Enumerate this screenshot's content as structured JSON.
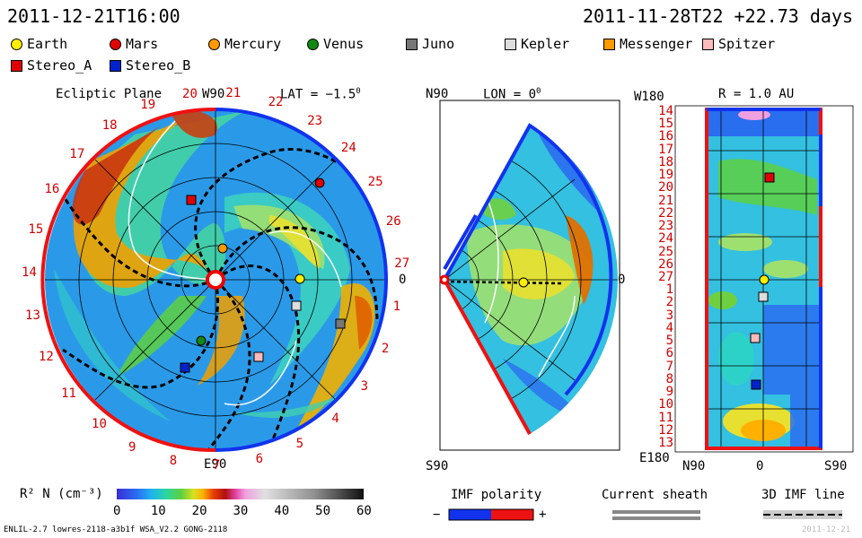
{
  "header": {
    "left_time": "2011-12-21T16:00",
    "right_time": "2011-11-28T22 +22.73 days"
  },
  "legend": [
    {
      "label": "Earth",
      "shape": "circle",
      "color": "#ffee00"
    },
    {
      "label": "Mars",
      "shape": "circle",
      "color": "#e00000"
    },
    {
      "label": "Mercury",
      "shape": "circle",
      "color": "#ff9900"
    },
    {
      "label": "Venus",
      "shape": "circle",
      "color": "#118811"
    },
    {
      "label": "Juno",
      "shape": "square",
      "color": "#777777"
    },
    {
      "label": "Kepler",
      "shape": "square",
      "color": "#dddddd"
    },
    {
      "label": "Messenger",
      "shape": "square",
      "color": "#ff9900"
    },
    {
      "label": "Spitzer",
      "shape": "square",
      "color": "#ffbbbb"
    },
    {
      "label": "Stereo_A",
      "shape": "square",
      "color": "#e00000"
    },
    {
      "label": "Stereo_B",
      "shape": "square",
      "color": "#0022cc"
    }
  ],
  "ecliptic": {
    "title": "Ecliptic Plane",
    "top_label": "W90",
    "bottom_label": "E90",
    "right_label": "0",
    "lat_label": "LAT = −1.5",
    "degree_sign": "0",
    "numbers": [
      "1",
      "2",
      "3",
      "4",
      "5",
      "6",
      "7",
      "8",
      "9",
      "10",
      "11",
      "12",
      "13",
      "14",
      "15",
      "16",
      "17",
      "18",
      "19",
      "20",
      "21",
      "22",
      "23",
      "24",
      "25",
      "26",
      "27"
    ]
  },
  "meridional": {
    "top_label": "N90",
    "bottom_label": "S90",
    "lon_label": "LON = 0",
    "degree_sign": "0",
    "right_label": "0"
  },
  "synoptic": {
    "top_left_label": "W180",
    "title": "R = 1.0 AU",
    "bottom_left": "E180",
    "bottom_n": "N90",
    "bottom_mid": "0",
    "bottom_s": "S90",
    "rows": [
      "14",
      "15",
      "16",
      "17",
      "18",
      "19",
      "20",
      "21",
      "22",
      "23",
      "24",
      "25",
      "26",
      "27",
      "1",
      "2",
      "3",
      "4",
      "5",
      "6",
      "7",
      "8",
      "9",
      "10",
      "11",
      "12",
      "13"
    ]
  },
  "colorbar": {
    "label": "R² N (cm⁻³)",
    "ticks": [
      "0",
      "10",
      "20",
      "30",
      "40",
      "50",
      "60"
    ]
  },
  "imf": {
    "title": "IMF polarity",
    "minus": "−",
    "plus": "+"
  },
  "sheath": {
    "title": "Current sheath"
  },
  "imf3d": {
    "title": "3D IMF line"
  },
  "footer": {
    "left": "ENLIL-2.7 lowres-2118-a3b1f WSA_V2.2 GONG-2118",
    "right": "2011-12-21"
  },
  "colors": {
    "stereo_a": "#ee1111",
    "stereo_b": "#1133ee"
  }
}
